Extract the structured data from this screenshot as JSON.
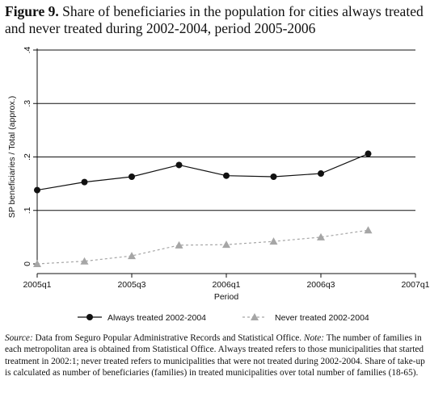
{
  "figure": {
    "label": "Figure 9.",
    "title": "Share of beneficiaries in the population for cities always treated and never treated during 2002-2004, period 2005-2006"
  },
  "note": {
    "source_label": "Source:",
    "source_text": "Data from Seguro Popular Administrative Records and Statistical Office.",
    "note_label": "Note:",
    "note_text": "The number of families in each metropolitan area is obtained from Statistical Office. Always treated refers to those municipalities that started treatment in 2002:1; never treated refers to municipalities that were not treated during 2002-2004. Share of take-up is calculated as number of beneficiaries (families) in treated municipalities over total number of families (18-65)."
  },
  "chart_data": {
    "type": "line",
    "title": "",
    "xlabel": "Period",
    "ylabel": "SP beneficiaries / Total (approx.)",
    "x": [
      0,
      1,
      2,
      3,
      4,
      5,
      6,
      7
    ],
    "xticks": [
      0,
      2,
      4,
      6,
      8
    ],
    "xtick_labels": [
      "2005q1",
      "2005q3",
      "2006q1",
      "2006q3",
      "2007q1"
    ],
    "xlim": [
      0,
      8
    ],
    "ylim": [
      0,
      0.4
    ],
    "yticks": [
      0,
      0.1,
      0.2,
      0.3,
      0.4
    ],
    "ytick_labels": [
      "0",
      ".1",
      ".2",
      ".3",
      ".4"
    ],
    "grid": true,
    "legend_position": "bottom",
    "series": [
      {
        "name": "Always treated 2002-2004",
        "values": [
          0.138,
          0.153,
          0.163,
          0.185,
          0.165,
          0.163,
          0.169,
          0.206
        ],
        "color": "#111111",
        "marker": "circle",
        "line_style": "solid"
      },
      {
        "name": "Never treated 2002-2004",
        "values": [
          0.0,
          0.005,
          0.015,
          0.035,
          0.036,
          0.042,
          0.05,
          0.063
        ],
        "color": "#a6a6a6",
        "marker": "triangle",
        "line_style": "dashed"
      }
    ]
  }
}
